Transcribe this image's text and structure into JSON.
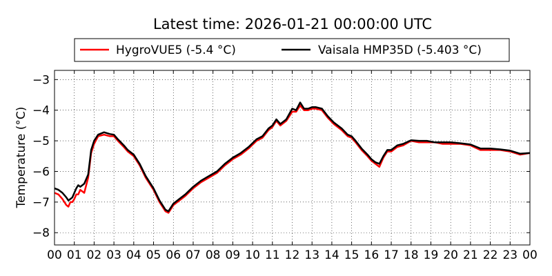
{
  "chart_data": {
    "type": "line",
    "title": "Latest time: 2026-01-21 00:00:00 UTC",
    "xlabel": "",
    "ylabel": "Temperature (°C)",
    "xlim": [
      0,
      24
    ],
    "ylim": [
      -8.4,
      -2.7
    ],
    "x_ticks": [
      0,
      1,
      2,
      3,
      4,
      5,
      6,
      7,
      8,
      9,
      10,
      11,
      12,
      13,
      14,
      15,
      16,
      17,
      18,
      19,
      20,
      21,
      22,
      23,
      24
    ],
    "x_tick_labels": [
      "00",
      "01",
      "02",
      "03",
      "04",
      "05",
      "06",
      "07",
      "08",
      "09",
      "10",
      "11",
      "12",
      "13",
      "14",
      "15",
      "16",
      "17",
      "18",
      "19",
      "20",
      "21",
      "22",
      "23",
      "00"
    ],
    "y_ticks": [
      -8,
      -7,
      -6,
      -5,
      -4,
      -3
    ],
    "y_tick_labels": [
      "−8",
      "−7",
      "−6",
      "−5",
      "−4",
      "−3"
    ],
    "grid": true,
    "legend_position": "top",
    "series": [
      {
        "name": "HygroVUE5 (-5.4 °C)",
        "color": "#ff0000",
        "x": [
          0,
          0.2,
          0.4,
          0.6,
          0.7,
          0.8,
          0.9,
          1.0,
          1.1,
          1.2,
          1.3,
          1.5,
          1.7,
          1.85,
          2.0,
          2.2,
          2.5,
          2.8,
          3.0,
          3.2,
          3.5,
          3.7,
          4.0,
          4.3,
          4.6,
          5.0,
          5.3,
          5.6,
          5.75,
          6.0,
          6.3,
          6.6,
          7.0,
          7.4,
          7.8,
          8.2,
          8.6,
          9.0,
          9.4,
          9.8,
          10.2,
          10.5,
          10.8,
          11.0,
          11.2,
          11.4,
          11.7,
          12.0,
          12.2,
          12.4,
          12.6,
          12.8,
          13.0,
          13.2,
          13.5,
          13.8,
          14.1,
          14.5,
          14.8,
          15.0,
          15.2,
          15.5,
          15.8,
          16.0,
          16.2,
          16.4,
          16.6,
          16.8,
          17.0,
          17.3,
          17.6,
          18.0,
          18.4,
          18.8,
          19.2,
          19.6,
          20.0,
          20.5,
          21.0,
          21.5,
          22.0,
          22.5,
          23.0,
          23.5,
          24.0
        ],
        "values": [
          -6.7,
          -6.75,
          -6.9,
          -7.1,
          -7.15,
          -7.0,
          -7.0,
          -6.9,
          -6.75,
          -6.75,
          -6.6,
          -6.7,
          -6.2,
          -5.4,
          -5.1,
          -4.85,
          -4.8,
          -4.85,
          -4.85,
          -5.0,
          -5.2,
          -5.35,
          -5.5,
          -5.8,
          -6.2,
          -6.6,
          -7.0,
          -7.3,
          -7.35,
          -7.1,
          -6.95,
          -6.8,
          -6.55,
          -6.35,
          -6.2,
          -6.05,
          -5.8,
          -5.6,
          -5.45,
          -5.25,
          -5.0,
          -4.9,
          -4.65,
          -4.55,
          -4.35,
          -4.5,
          -4.35,
          -4.05,
          -4.05,
          -3.85,
          -4.0,
          -4.0,
          -3.95,
          -3.95,
          -4.0,
          -4.25,
          -4.45,
          -4.65,
          -4.85,
          -4.9,
          -5.05,
          -5.3,
          -5.5,
          -5.65,
          -5.75,
          -5.85,
          -5.55,
          -5.35,
          -5.35,
          -5.2,
          -5.15,
          -5.0,
          -5.05,
          -5.05,
          -5.05,
          -5.1,
          -5.1,
          -5.1,
          -5.15,
          -5.3,
          -5.3,
          -5.3,
          -5.35,
          -5.45,
          -5.4
        ]
      },
      {
        "name": "Vaisala HMP35D (-5.403 °C)",
        "color": "#000000",
        "x": [
          0,
          0.2,
          0.4,
          0.6,
          0.7,
          0.8,
          0.9,
          1.0,
          1.1,
          1.2,
          1.3,
          1.5,
          1.7,
          1.85,
          2.0,
          2.2,
          2.5,
          2.8,
          3.0,
          3.2,
          3.5,
          3.7,
          4.0,
          4.3,
          4.6,
          5.0,
          5.3,
          5.6,
          5.75,
          6.0,
          6.3,
          6.6,
          7.0,
          7.4,
          7.8,
          8.2,
          8.6,
          9.0,
          9.4,
          9.8,
          10.2,
          10.5,
          10.8,
          11.0,
          11.2,
          11.4,
          11.7,
          12.0,
          12.2,
          12.4,
          12.6,
          12.8,
          13.0,
          13.2,
          13.5,
          13.8,
          14.1,
          14.5,
          14.8,
          15.0,
          15.2,
          15.5,
          15.8,
          16.0,
          16.2,
          16.4,
          16.6,
          16.8,
          17.0,
          17.3,
          17.6,
          18.0,
          18.4,
          18.8,
          19.2,
          19.6,
          20.0,
          20.5,
          21.0,
          21.5,
          22.0,
          22.5,
          23.0,
          23.5,
          24.0
        ],
        "values": [
          -6.55,
          -6.6,
          -6.7,
          -6.85,
          -6.95,
          -6.9,
          -6.85,
          -6.7,
          -6.55,
          -6.45,
          -6.5,
          -6.4,
          -6.1,
          -5.3,
          -5.0,
          -4.8,
          -4.72,
          -4.78,
          -4.8,
          -4.95,
          -5.15,
          -5.3,
          -5.45,
          -5.75,
          -6.15,
          -6.55,
          -6.95,
          -7.25,
          -7.3,
          -7.05,
          -6.9,
          -6.75,
          -6.5,
          -6.3,
          -6.15,
          -6.0,
          -5.75,
          -5.55,
          -5.4,
          -5.2,
          -4.95,
          -4.85,
          -4.6,
          -4.5,
          -4.3,
          -4.45,
          -4.3,
          -3.95,
          -4.0,
          -3.75,
          -3.95,
          -3.95,
          -3.9,
          -3.9,
          -3.95,
          -4.2,
          -4.4,
          -4.6,
          -4.8,
          -4.85,
          -5.0,
          -5.25,
          -5.45,
          -5.6,
          -5.7,
          -5.75,
          -5.5,
          -5.3,
          -5.3,
          -5.15,
          -5.1,
          -4.98,
          -5.0,
          -5.0,
          -5.05,
          -5.05,
          -5.05,
          -5.08,
          -5.12,
          -5.25,
          -5.25,
          -5.28,
          -5.32,
          -5.42,
          -5.4
        ]
      }
    ]
  }
}
